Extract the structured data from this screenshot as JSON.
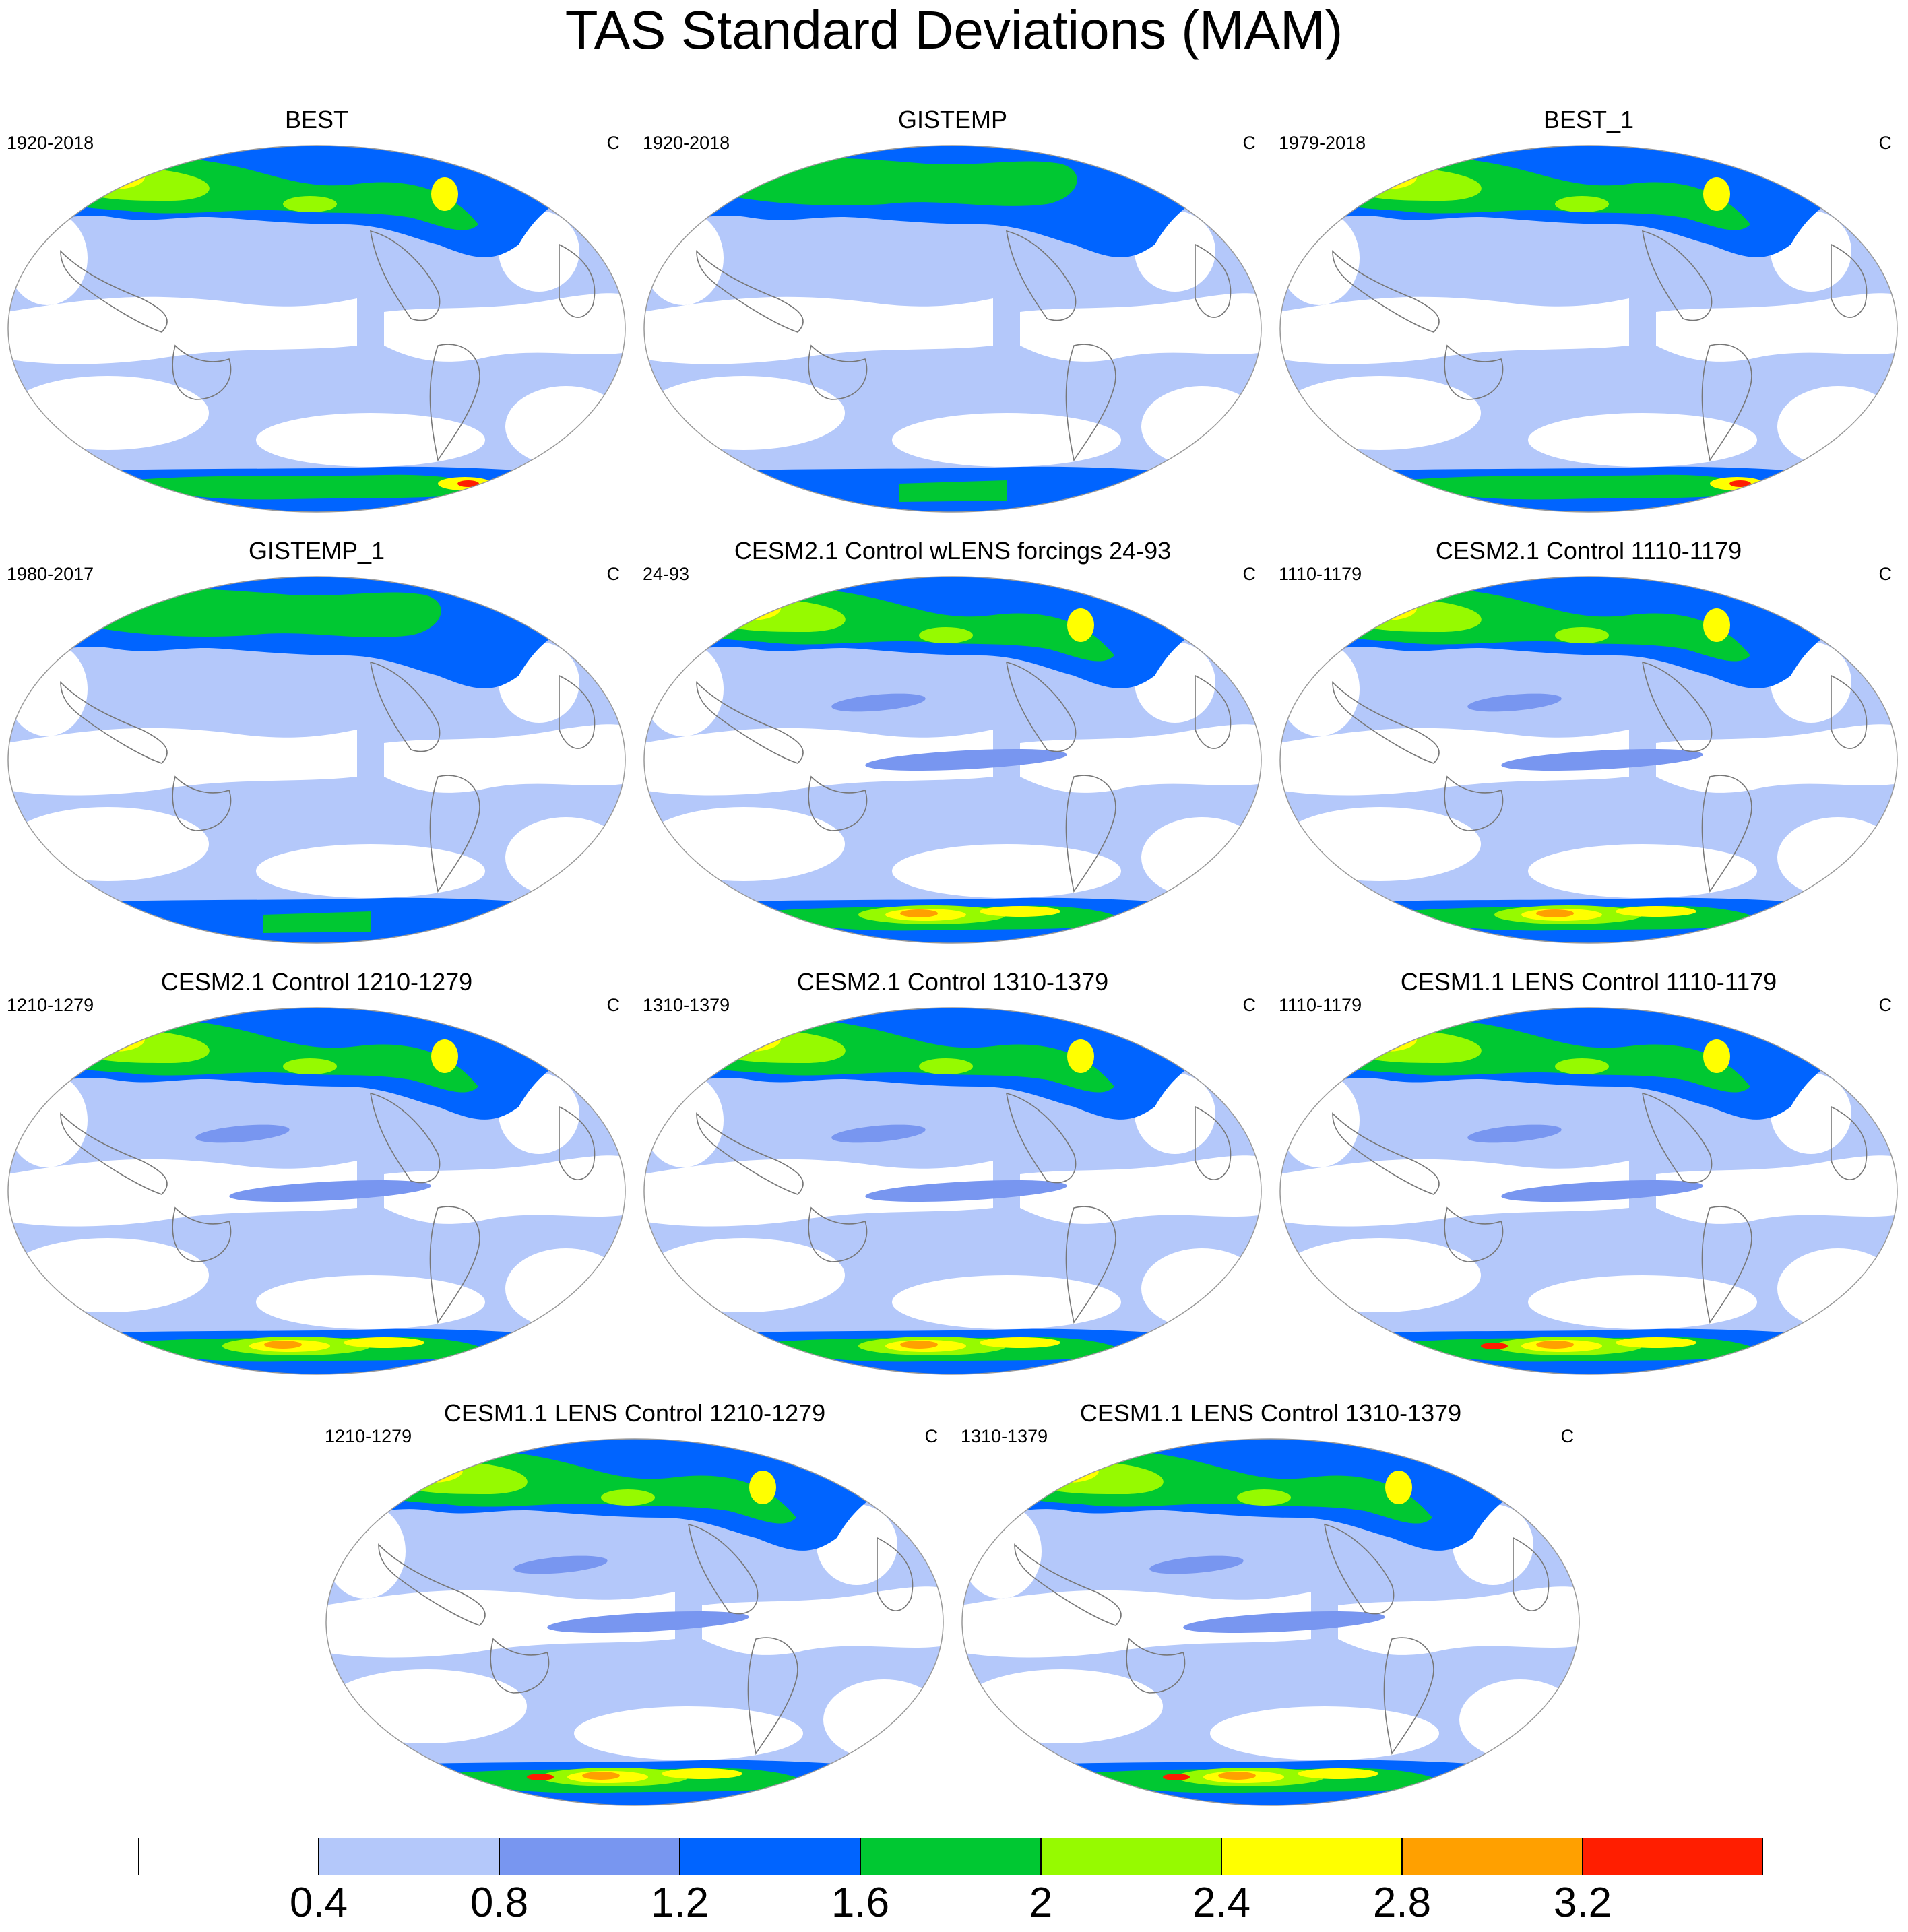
{
  "title": "TAS Standard Deviations (MAM)",
  "panels": [
    {
      "title": "BEST",
      "period": "1920-2018",
      "unit": "C",
      "style": "obs"
    },
    {
      "title": "GISTEMP",
      "period": "1920-2018",
      "unit": "C",
      "style": "gis"
    },
    {
      "title": "BEST_1",
      "period": "1979-2018",
      "unit": "C",
      "style": "obs"
    },
    {
      "title": "GISTEMP_1",
      "period": "1980-2017",
      "unit": "C",
      "style": "gis"
    },
    {
      "title": "CESM2.1 Control wLENS forcings 24-93",
      "period": "24-93",
      "unit": "C",
      "style": "model"
    },
    {
      "title": "CESM2.1 Control 1110-1179",
      "period": "1110-1179",
      "unit": "C",
      "style": "model"
    },
    {
      "title": "CESM2.1 Control 1210-1279",
      "period": "1210-1279",
      "unit": "C",
      "style": "model"
    },
    {
      "title": "CESM2.1 Control 1310-1379",
      "period": "1310-1379",
      "unit": "C",
      "style": "model"
    },
    {
      "title": "CESM1.1 LENS Control 1110-1179",
      "period": "1110-1179",
      "unit": "C",
      "style": "lens"
    },
    {
      "title": "CESM1.1 LENS Control 1210-1279",
      "period": "1210-1279",
      "unit": "C",
      "style": "lens"
    },
    {
      "title": "CESM1.1 LENS Control 1310-1379",
      "period": "1310-1379",
      "unit": "C",
      "style": "lens"
    }
  ],
  "colorbar": {
    "colors": [
      "#ffffff",
      "#b4c8fa",
      "#7896f0",
      "#0064ff",
      "#00c832",
      "#96fa00",
      "#ffff00",
      "#ffa000",
      "#ff1e00"
    ],
    "labels": [
      "0.4",
      "0.8",
      "1.2",
      "1.6",
      "2",
      "2.4",
      "2.8",
      "3.2"
    ]
  }
}
